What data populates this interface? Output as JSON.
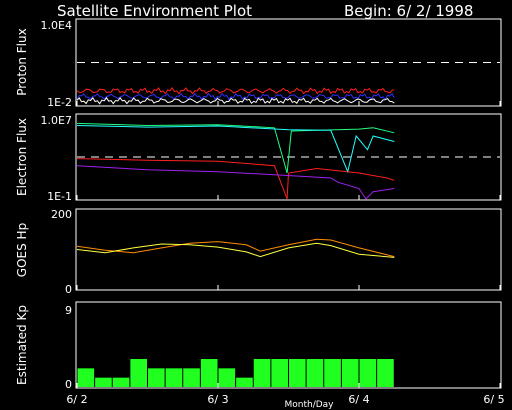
{
  "header": {
    "title": "Satellite Environment Plot",
    "begin": "Begin: 6/ 2/ 1998"
  },
  "x_axis": {
    "label": "Month/Day",
    "range": [
      "1998-06-02",
      "1998-06-05"
    ],
    "ticks": [
      {
        "label": "6/ 2",
        "date": "1998-06-02"
      },
      {
        "label": "6/ 3",
        "date": "1998-06-03"
      },
      {
        "label": "6/ 4",
        "date": "1998-06-04"
      },
      {
        "label": "6/ 5",
        "date": "1998-06-05"
      }
    ]
  },
  "chart_data": [
    {
      "type": "line",
      "ylabel": "Proton Flux",
      "yscale": "log",
      "ylim": [
        0.01,
        10000
      ],
      "yticks": [
        "1.0E4",
        "1E-2"
      ],
      "threshold_value": 10,
      "series": [
        {
          "color": "#ff2020",
          "level": 0.1
        },
        {
          "color": "#3030ff",
          "level": 0.04
        },
        {
          "color": "#ffffff",
          "level": 0.02
        }
      ]
    },
    {
      "type": "line",
      "ylabel": "Electron Flux",
      "yscale": "log",
      "ylim": [
        0.1,
        10000000
      ],
      "yticks": [
        "1.0E7",
        "1E-1"
      ],
      "threshold_value": 1000,
      "series": [
        {
          "color": "#20ff80",
          "points": [
            [
              0,
              1600000
            ],
            [
              0.5,
              1000000
            ],
            [
              1.0,
              1200000
            ],
            [
              1.4,
              600000
            ],
            [
              1.49,
              30
            ],
            [
              1.52,
              300000
            ],
            [
              2.0,
              450000
            ],
            [
              2.1,
              600000
            ],
            [
              2.25,
              200000
            ]
          ]
        },
        {
          "color": "#20ffff",
          "points": [
            [
              0,
              1000000
            ],
            [
              0.5,
              700000
            ],
            [
              1.0,
              900000
            ],
            [
              1.5,
              400000
            ],
            [
              1.8,
              350000
            ],
            [
              1.92,
              40
            ],
            [
              1.98,
              100000
            ],
            [
              2.06,
              5000
            ],
            [
              2.1,
              100000
            ],
            [
              2.25,
              30000
            ]
          ]
        },
        {
          "color": "#ff2020",
          "points": [
            [
              0,
              700
            ],
            [
              0.5,
              500
            ],
            [
              1.0,
              400
            ],
            [
              1.4,
              150
            ],
            [
              1.49,
              0.1
            ],
            [
              1.5,
              30
            ],
            [
              1.7,
              80
            ],
            [
              2.0,
              30
            ],
            [
              2.2,
              10
            ],
            [
              2.25,
              6
            ]
          ]
        },
        {
          "color": "#a020f0",
          "points": [
            [
              0,
              150
            ],
            [
              0.5,
              60
            ],
            [
              1.0,
              40
            ],
            [
              1.4,
              20
            ],
            [
              1.8,
              10
            ],
            [
              1.85,
              4
            ],
            [
              2.0,
              1
            ],
            [
              2.05,
              0.1
            ],
            [
              2.1,
              0.5
            ],
            [
              2.25,
              1
            ]
          ]
        }
      ]
    },
    {
      "type": "line",
      "ylabel": "GOES Hp",
      "ylim": [
        0,
        200
      ],
      "yticks": [
        "200",
        "0"
      ],
      "series": [
        {
          "color": "#ff8c00",
          "points": [
            [
              0,
              108
            ],
            [
              0.2,
              98
            ],
            [
              0.4,
              92
            ],
            [
              0.6,
              104
            ],
            [
              0.8,
              116
            ],
            [
              1.0,
              120
            ],
            [
              1.2,
              112
            ],
            [
              1.3,
              96
            ],
            [
              1.5,
              112
            ],
            [
              1.7,
              126
            ],
            [
              1.8,
              124
            ],
            [
              2.0,
              104
            ],
            [
              2.25,
              82
            ]
          ]
        },
        {
          "color": "#ffff40",
          "points": [
            [
              0,
              100
            ],
            [
              0.2,
              92
            ],
            [
              0.4,
              104
            ],
            [
              0.6,
              114
            ],
            [
              0.8,
              112
            ],
            [
              1.0,
              106
            ],
            [
              1.2,
              94
            ],
            [
              1.3,
              82
            ],
            [
              1.5,
              104
            ],
            [
              1.7,
              116
            ],
            [
              1.8,
              110
            ],
            [
              2.0,
              88
            ],
            [
              2.25,
              80
            ]
          ]
        }
      ]
    },
    {
      "type": "bar",
      "ylabel": "Estimated Kp",
      "ylim": [
        0,
        9
      ],
      "yticks": [
        "9",
        "0"
      ],
      "color": "#20ff20",
      "bar_hours": 3,
      "values": [
        2,
        1,
        1,
        3,
        2,
        2,
        2,
        3,
        2,
        1,
        3,
        3,
        3,
        3,
        3,
        3,
        3,
        3
      ]
    }
  ]
}
